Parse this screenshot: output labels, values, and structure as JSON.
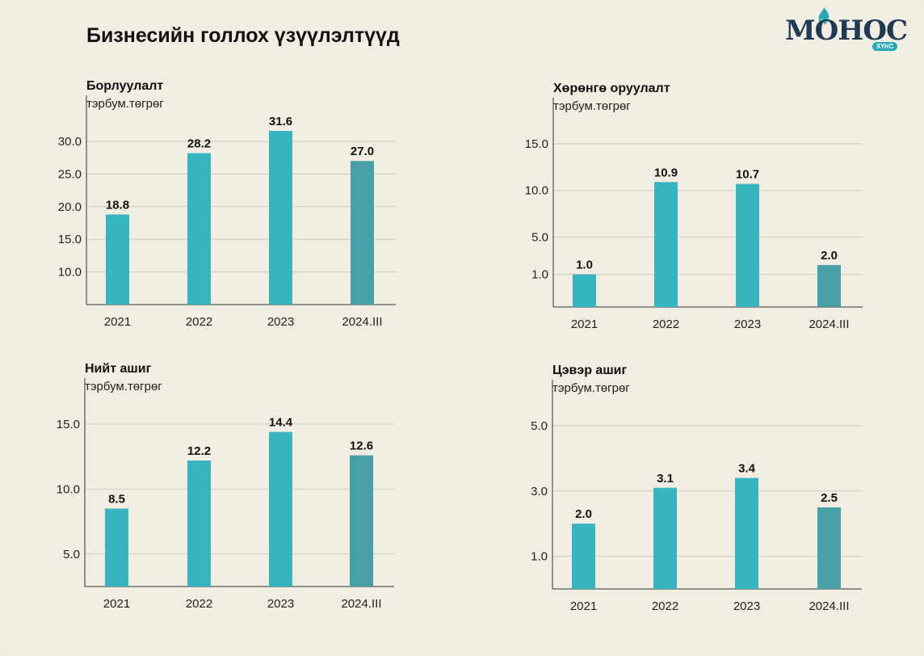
{
  "header": {
    "title": "Бизнесийн голлох үзүүлэлтүүд"
  },
  "logo": {
    "wordmark": "МОНОС",
    "badge": "ХҮНС",
    "color": "#1e3a55",
    "badge_color": "#2aa8b6"
  },
  "colors": {
    "bar": "#36b4bf",
    "bar_last": "#479fa8",
    "grid": "#cfc8bd",
    "axis": "#333333"
  },
  "chart_data": [
    {
      "type": "bar",
      "title": "Борлуулалт",
      "unit": "тэрбум.төгрөг",
      "categories": [
        "2021",
        "2022",
        "2023",
        "2024.III"
      ],
      "values": [
        18.8,
        28.2,
        31.6,
        27.0
      ],
      "value_labels": [
        "18.8",
        "28.2",
        "31.6",
        "27.0"
      ],
      "yticks": [
        10.0,
        15.0,
        20.0,
        25.0,
        30.0
      ],
      "ytick_labels": [
        "10.0",
        "15.0",
        "20.0",
        "25.0",
        "30.0"
      ],
      "ylim": [
        5,
        30
      ],
      "grid": true
    },
    {
      "type": "bar",
      "title": "Хөрөнгө оруулалт",
      "unit": "тэрбум.төгрөг",
      "categories": [
        "2021",
        "2022",
        "2023",
        "2024.III"
      ],
      "values": [
        1.0,
        10.9,
        10.7,
        2.0
      ],
      "value_labels": [
        "1.0",
        "10.9",
        "10.7",
        "2.0"
      ],
      "yticks": [
        1.0,
        5.0,
        10.0,
        15.0
      ],
      "ytick_labels": [
        "1.0",
        "5.0",
        "10.0",
        "15.0"
      ],
      "ylim": [
        -2.5,
        15
      ],
      "grid": true
    },
    {
      "type": "bar",
      "title": "Нийт ашиг",
      "unit": "тэрбум.төгрөг",
      "categories": [
        "2021",
        "2022",
        "2023",
        "2024.III"
      ],
      "values": [
        8.5,
        12.2,
        14.4,
        12.6
      ],
      "value_labels": [
        "8.5",
        "12.2",
        "14.4",
        "12.6"
      ],
      "yticks": [
        5.0,
        10.0,
        15.0
      ],
      "ytick_labels": [
        "5.0",
        "10.0",
        "15.0"
      ],
      "ylim": [
        2.5,
        15
      ],
      "grid": true
    },
    {
      "type": "bar",
      "title": "Цэвэр ашиг",
      "unit": "тэрбум.төгрөг",
      "categories": [
        "2021",
        "2022",
        "2023",
        "2024.III"
      ],
      "values": [
        2.0,
        3.1,
        3.4,
        2.5
      ],
      "value_labels": [
        "2.0",
        "3.1",
        "3.4",
        "2.5"
      ],
      "yticks": [
        1.0,
        3.0,
        5.0
      ],
      "ytick_labels": [
        "1.0",
        "3.0",
        "5.0"
      ],
      "ylim": [
        0,
        5
      ],
      "grid": true
    }
  ]
}
